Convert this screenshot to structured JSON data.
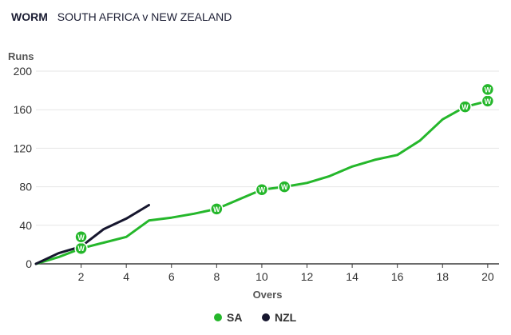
{
  "header": {
    "label": "WORM",
    "match": "SOUTH AFRICA v NEW ZEALAND"
  },
  "chart_data": {
    "type": "line",
    "xlabel": "Overs",
    "ylabel": "Runs",
    "xlim": [
      0,
      20.5
    ],
    "ylim": [
      0,
      200
    ],
    "xticks": [
      2,
      4,
      6,
      8,
      10,
      12,
      14,
      16,
      18,
      20
    ],
    "yticks": [
      0,
      40,
      80,
      120,
      160,
      200
    ],
    "grid": "horizontal",
    "legend_position": "bottom",
    "wicket_marker": "W",
    "series": [
      {
        "name": "SA",
        "color": "#25b72b",
        "x": [
          0,
          1,
          2,
          3,
          4,
          5,
          6,
          7,
          8,
          9,
          10,
          11,
          12,
          13,
          14,
          15,
          16,
          17,
          18,
          19,
          20
        ],
        "y": [
          0,
          7,
          16,
          22,
          28,
          45,
          48,
          52,
          57,
          67,
          77,
          80,
          84,
          91,
          101,
          108,
          113,
          128,
          150,
          163,
          169
        ],
        "wickets": [
          {
            "x": 2,
            "y": 16
          },
          {
            "x": 2,
            "y": 28
          },
          {
            "x": 8,
            "y": 57
          },
          {
            "x": 10,
            "y": 77
          },
          {
            "x": 11,
            "y": 80
          },
          {
            "x": 19,
            "y": 163
          },
          {
            "x": 20,
            "y": 169
          },
          {
            "x": 20,
            "y": 181
          }
        ]
      },
      {
        "name": "NZL",
        "color": "#16162e",
        "x": [
          0,
          1,
          2,
          3,
          4,
          5
        ],
        "y": [
          0,
          11,
          18,
          36,
          47,
          61
        ],
        "wickets": []
      }
    ]
  }
}
